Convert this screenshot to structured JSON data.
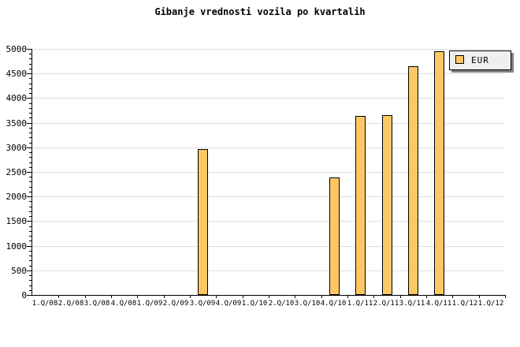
{
  "chart_data": {
    "type": "bar",
    "title": "Gibanje vrednosti vozila po kvartalih",
    "categories": [
      "1.Q/08",
      "2.Q/08",
      "3.Q/08",
      "4.Q/08",
      "1.Q/09",
      "2.Q/09",
      "3.Q/09",
      "4.Q/09",
      "1.Q/10",
      "2.Q/10",
      "3.Q/10",
      "4.Q/10",
      "1.Q/11",
      "2.Q/11",
      "3.Q/11",
      "4.Q/11",
      "1.Q/12",
      "1.Q/12"
    ],
    "values": [
      null,
      null,
      null,
      null,
      null,
      null,
      2970,
      null,
      null,
      null,
      null,
      2390,
      3630,
      3660,
      4640,
      4950,
      null,
      null
    ],
    "series_name": "EUR",
    "xlabel": "",
    "ylabel": "",
    "ylim": [
      0,
      5000
    ],
    "y_major_step": 500,
    "y_minor_step": 100,
    "y_tick_labels": [
      "0",
      "500",
      "1000",
      "1500",
      "2000",
      "2500",
      "3000",
      "3500",
      "4000",
      "4500",
      "5000"
    ],
    "grid": "horizontal-only",
    "legend": {
      "label": "EUR",
      "position": "top-right"
    },
    "colors": {
      "bar_fill": "#FDC764",
      "bar_border": "#000000",
      "grid_color": "#DEDEDE",
      "axis_color": "#000000",
      "legend_bg": "#EFEFEF",
      "legend_shadow": "#7F7F7F",
      "background": "#FFFFFF"
    }
  }
}
